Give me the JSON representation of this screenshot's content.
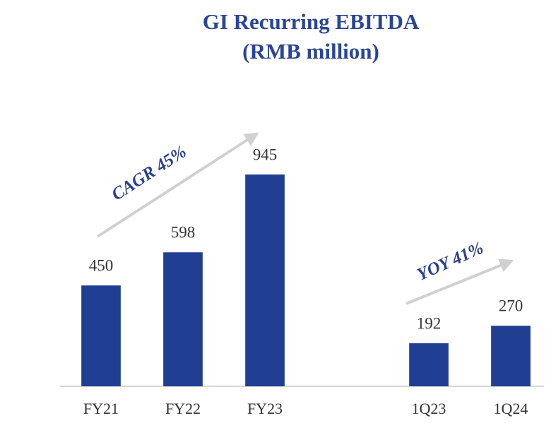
{
  "chart_data": {
    "type": "bar",
    "title": "GI Recurring EBITDA",
    "subtitle": "(RMB million)",
    "categories": [
      "FY21",
      "FY22",
      "FY23",
      null,
      "1Q23",
      "1Q24"
    ],
    "values": [
      450,
      598,
      945,
      null,
      192,
      270
    ],
    "color": "#203e92",
    "ylim": [
      0,
      1100
    ],
    "annotations": [
      "CAGR 45%",
      "YOY 41%"
    ]
  }
}
